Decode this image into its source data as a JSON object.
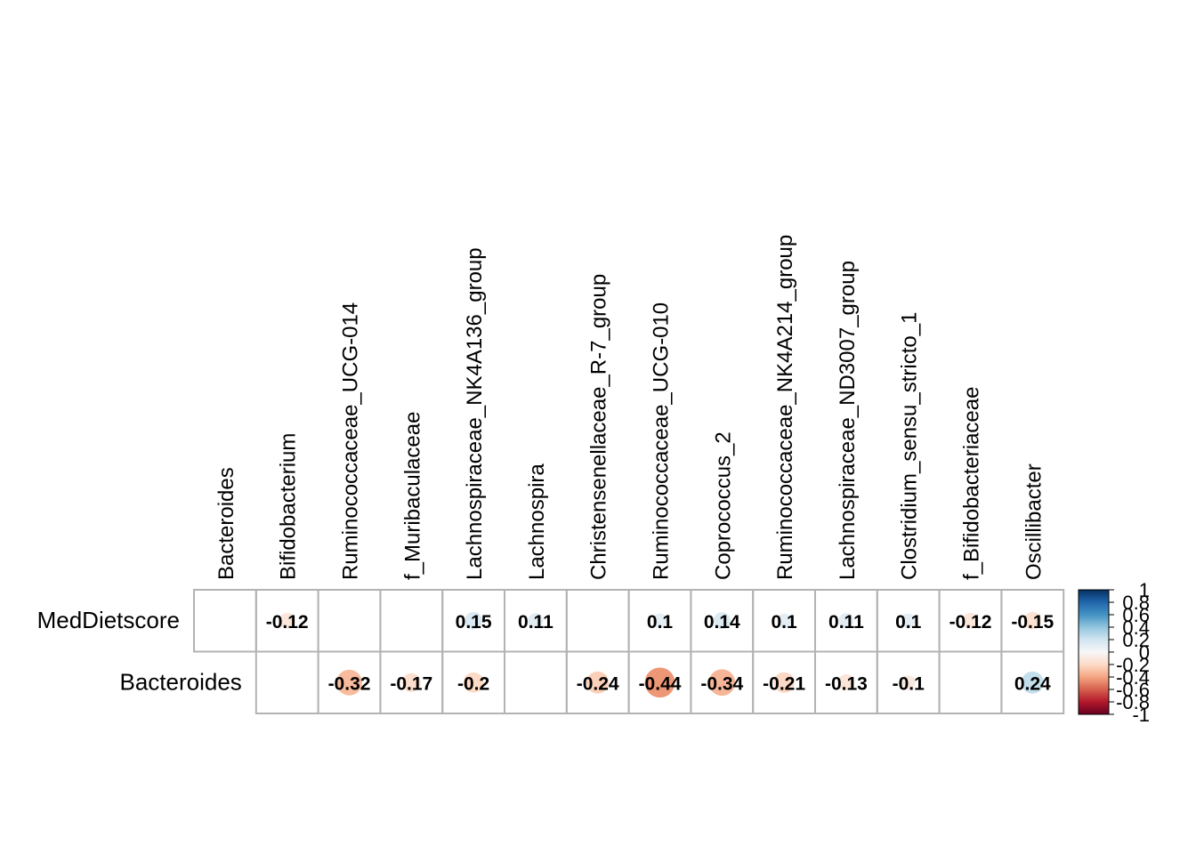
{
  "chart_data": {
    "type": "heatmap",
    "style": "correlation circle plot",
    "columns": [
      "Bacteroides",
      "Bifidobacterium",
      "Ruminococcaceae_UCG-014",
      "f_Muribaculaceae",
      "Lachnospiraceae_NK4A136_group",
      "Lachnospira",
      "Christensenellaceae_R-7_group",
      "Ruminococcaceae_UCG-010",
      "Coprococcus_2",
      "Ruminococcaceae_NK4A214_group",
      "Lachnospiraceae_ND3007_group",
      "Clostridium_sensu_stricto_1",
      "f_Bifidobacteriaceae",
      "Oscillibacter"
    ],
    "rows": [
      {
        "name": "MedDietscore",
        "values": [
          null,
          -0.12,
          null,
          null,
          0.15,
          0.11,
          null,
          0.1,
          0.14,
          0.1,
          0.11,
          0.1,
          -0.12,
          -0.15
        ],
        "labels": [
          "",
          "-0.12",
          "",
          "",
          "0.15",
          "0.11",
          "",
          "0.1",
          "0.14",
          "0.1",
          "0.11",
          "0.1",
          "-0.12",
          "-0.15"
        ]
      },
      {
        "name": "Bacteroides",
        "values": [
          null,
          null,
          -0.32,
          -0.17,
          -0.2,
          null,
          -0.24,
          -0.44,
          -0.34,
          -0.21,
          -0.13,
          -0.1,
          null,
          0.24
        ],
        "labels": [
          "",
          "",
          "-0.32",
          "-0.17",
          "-0.2",
          "",
          "-0.24",
          "-0.44",
          "-0.34",
          "-0.21",
          "-0.13",
          "-0.1",
          "",
          "0.24"
        ]
      }
    ],
    "row_start_col": [
      0,
      1
    ],
    "color_scale": {
      "range": [
        -1,
        1
      ],
      "low": "#67001F",
      "mid": "#F7F7F7",
      "high": "#053061",
      "palette": [
        "#67001F",
        "#B2182B",
        "#D6604D",
        "#F4A582",
        "#FDDBC7",
        "#F7F7F7",
        "#D1E5F0",
        "#92C5DE",
        "#4393C3",
        "#2166AC",
        "#053061"
      ]
    },
    "legend": {
      "position": "right",
      "tick_labels": [
        "1",
        "0.8",
        "0.6",
        "0.4",
        "0.2",
        "0",
        "-0.2",
        "-0.4",
        "-0.6",
        "-0.8",
        "-1"
      ],
      "tick_values": [
        1,
        0.8,
        0.6,
        0.4,
        0.2,
        0,
        -0.2,
        -0.4,
        -0.6,
        -0.8,
        -1
      ]
    }
  }
}
